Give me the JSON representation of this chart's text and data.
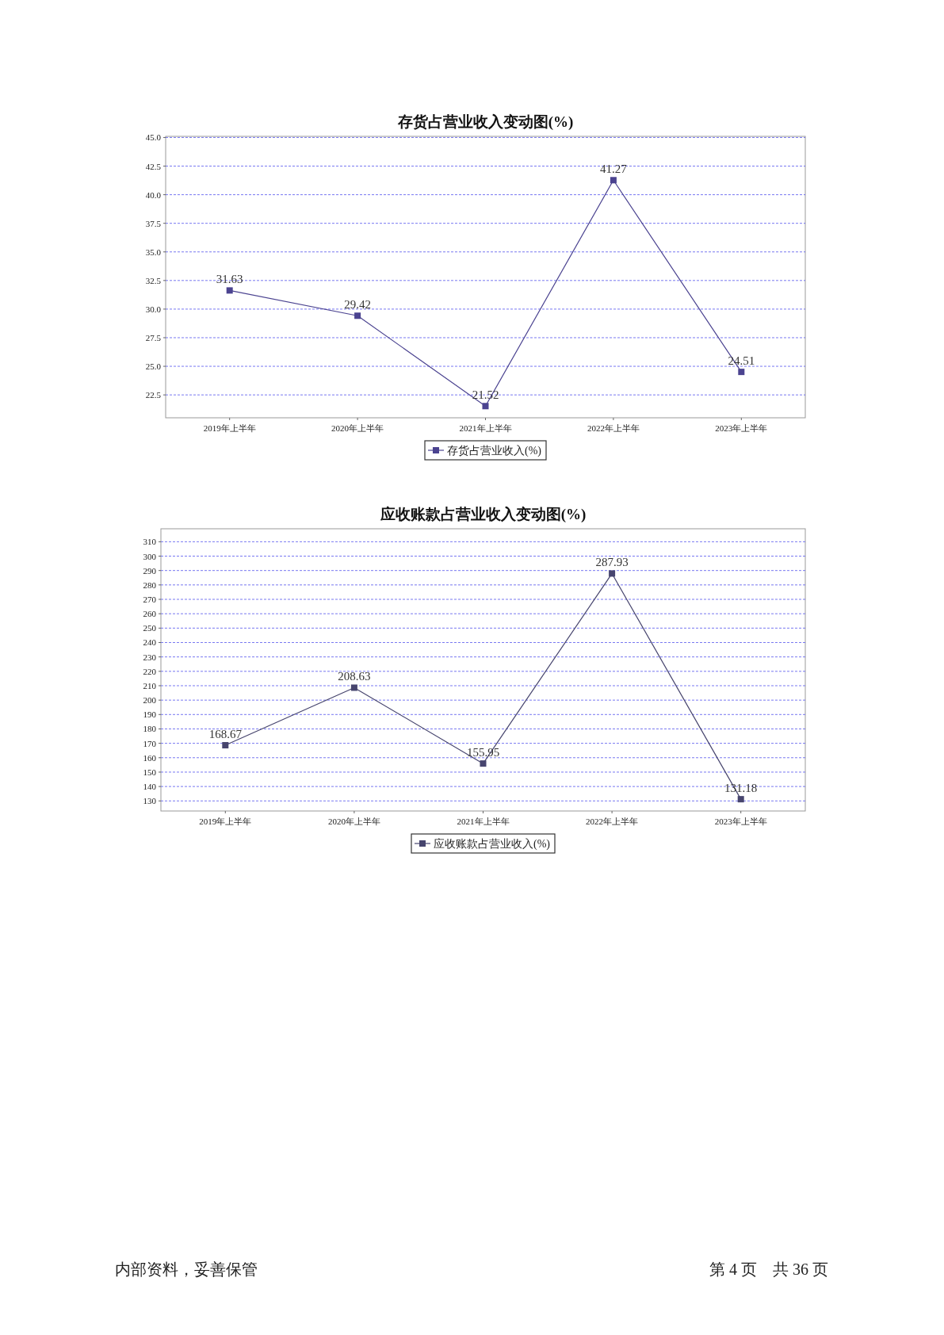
{
  "chart_data": [
    {
      "type": "line",
      "title": "存货占营业收入变动图(%)",
      "categories": [
        "2019年上半年",
        "2020年上半年",
        "2021年上半年",
        "2022年上半年",
        "2023年上半年"
      ],
      "series": [
        {
          "name": "存货占营业收入(%)",
          "color": "#4b4390",
          "values": [
            31.63,
            29.42,
            21.52,
            41.27,
            24.51
          ]
        }
      ],
      "ylim": [
        20.5,
        45.1
      ],
      "yticks": [
        {
          "value": 22.5,
          "label": "22.5"
        },
        {
          "value": 25,
          "label": "25.0"
        },
        {
          "value": 27.5,
          "label": "27.5"
        },
        {
          "value": 30,
          "label": "30.0"
        },
        {
          "value": 32.5,
          "label": "32.5"
        },
        {
          "value": 35,
          "label": "35.0"
        },
        {
          "value": 37.5,
          "label": "37.5"
        },
        {
          "value": 40,
          "label": "40.0"
        },
        {
          "value": 42.5,
          "label": "42.5"
        },
        {
          "value": 45,
          "label": "45.0"
        }
      ],
      "grid": "y",
      "legend": "bottom",
      "marker": "square",
      "data_labels": true
    },
    {
      "type": "line",
      "title": "应收账款占营业收入变动图(%)",
      "categories": [
        "2019年上半年",
        "2020年上半年",
        "2021年上半年",
        "2022年上半年",
        "2023年上半年"
      ],
      "series": [
        {
          "name": "应收账款占营业收入(%)",
          "color": "#47456e",
          "values": [
            168.67,
            208.63,
            155.95,
            287.93,
            131.18
          ]
        }
      ],
      "ylim": [
        123,
        319
      ],
      "yticks": [
        130,
        140,
        150,
        160,
        170,
        180,
        190,
        200,
        210,
        220,
        230,
        240,
        250,
        260,
        270,
        280,
        290,
        300,
        310
      ],
      "grid": "y",
      "legend": "bottom",
      "marker": "square",
      "data_labels": true,
      "annotations": [
        "内部资料，妥善保管",
        "第 4 页　共 36 页"
      ]
    }
  ]
}
